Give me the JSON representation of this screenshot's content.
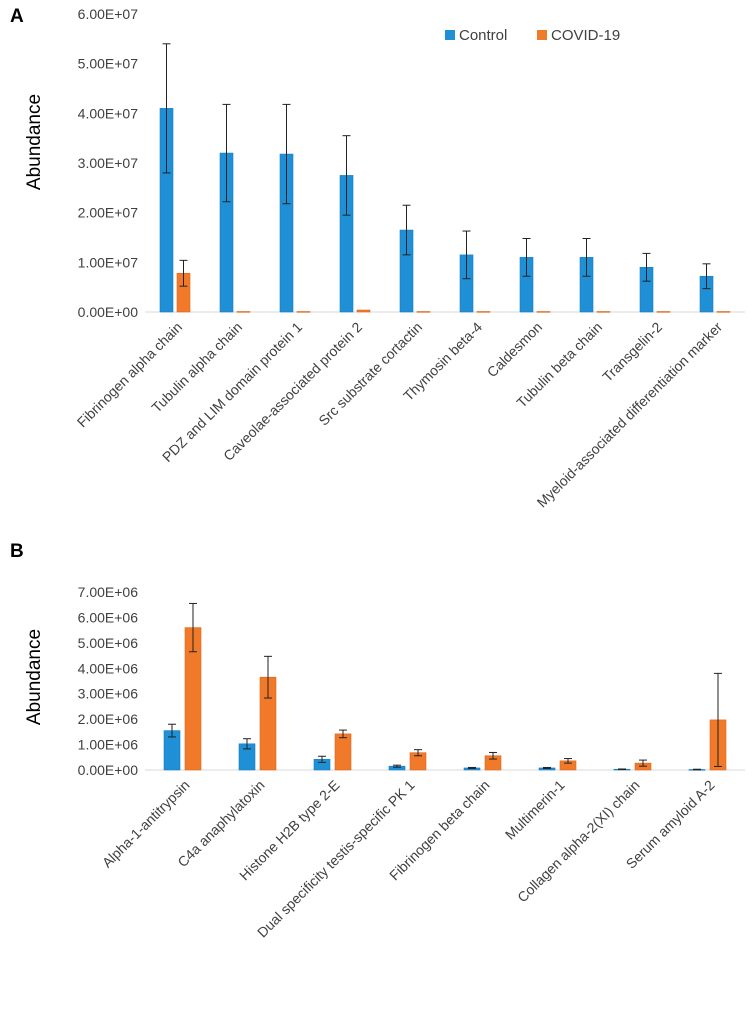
{
  "colors": {
    "control": "#1f8fd6",
    "covid": "#f07a2a",
    "error_bar": "#222222",
    "axis": "#d9d9d9",
    "text": "#404040"
  },
  "chart_data": [
    {
      "type": "bar",
      "panel": "A",
      "ylabel": "Abundance",
      "ylim": [
        0,
        60000000
      ],
      "yticks": [
        0,
        10000000,
        20000000,
        30000000,
        40000000,
        50000000,
        60000000
      ],
      "ytick_labels": [
        "0.00E+00",
        "1.00E+07",
        "2.00E+07",
        "3.00E+07",
        "4.00E+07",
        "5.00E+07",
        "6.00E+07"
      ],
      "legend": {
        "position": "top-right",
        "entries": [
          "Control",
          "COVID-19"
        ]
      },
      "categories": [
        "Fibrinogen alpha chain",
        "Tubulin alpha chain",
        "PDZ and LIM domain protein 1",
        "Caveolae-associated protein 2",
        "Src substrate cortactin",
        "Thymosin beta-4",
        "Caldesmon",
        "Tubulin beta chain",
        "Transgelin-2",
        "Myeloid-associated differentiation marker"
      ],
      "series": [
        {
          "name": "Control",
          "values": [
            41000000,
            32000000,
            31800000,
            27500000,
            16500000,
            11500000,
            11000000,
            11000000,
            9000000,
            7200000
          ],
          "errors": [
            13000000,
            9800000,
            10000000,
            8000000,
            5000000,
            4800000,
            3800000,
            3800000,
            2800000,
            2500000
          ]
        },
        {
          "name": "COVID-19",
          "values": [
            7800000,
            100000,
            100000,
            400000,
            100000,
            100000,
            100000,
            100000,
            100000,
            100000
          ],
          "errors": [
            2600000,
            0,
            0,
            0,
            0,
            0,
            0,
            0,
            0,
            0
          ]
        }
      ]
    },
    {
      "type": "bar",
      "panel": "B",
      "ylabel": "Abundance",
      "ylim": [
        0,
        7000000
      ],
      "yticks": [
        0,
        1000000,
        2000000,
        3000000,
        4000000,
        5000000,
        6000000,
        7000000
      ],
      "ytick_labels": [
        "0.00E+00",
        "1.00E+06",
        "2.00E+06",
        "3.00E+06",
        "4.00E+06",
        "5.00E+06",
        "6.00E+06",
        "7.00E+06"
      ],
      "categories": [
        "Alpha-1-antitrypsin",
        "C4a anaphylatoxin",
        "Histone H2B type 2-E",
        "Dual specificity testis-specific PK 1",
        "Fibrinogen beta chain",
        "Multimerin-1",
        "Collagen alpha-2(XI) chain",
        "Serum amyloid A-2"
      ],
      "series": [
        {
          "name": "Control",
          "values": [
            1550000,
            1030000,
            420000,
            150000,
            80000,
            80000,
            30000,
            20000
          ],
          "errors": [
            250000,
            200000,
            120000,
            40000,
            20000,
            20000,
            10000,
            10000
          ]
        },
        {
          "name": "COVID-19",
          "values": [
            5600000,
            3650000,
            1420000,
            680000,
            560000,
            360000,
            270000,
            1970000
          ],
          "errors": [
            950000,
            820000,
            150000,
            120000,
            130000,
            90000,
            120000,
            1830000
          ]
        }
      ]
    }
  ]
}
